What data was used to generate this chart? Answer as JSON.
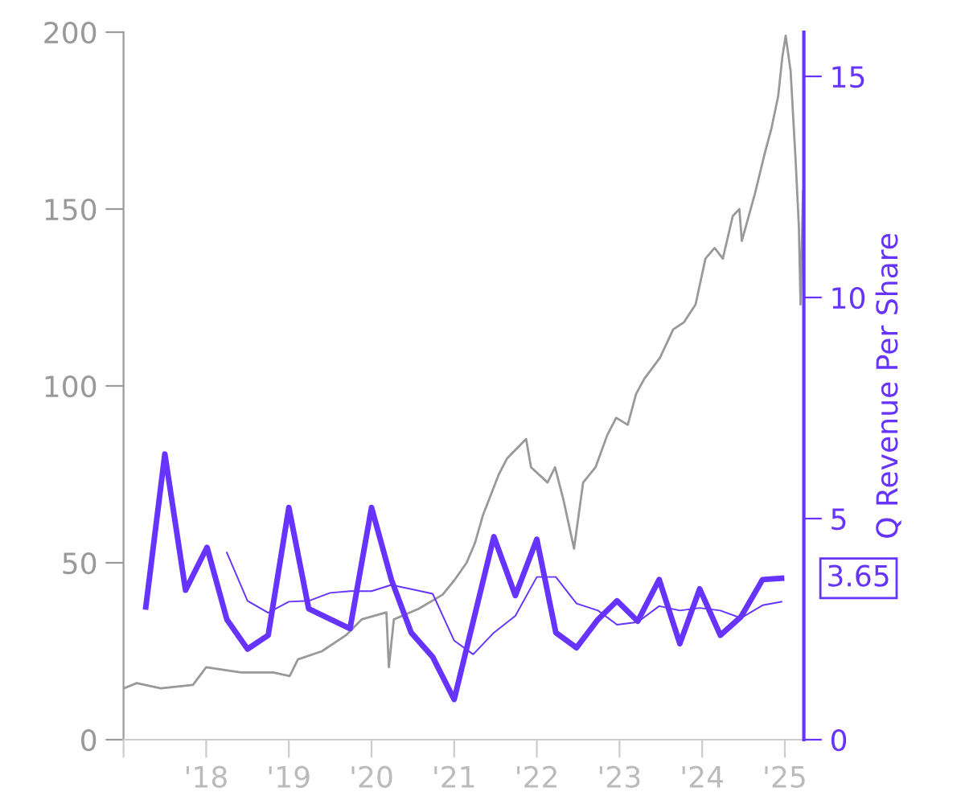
{
  "chart_data": {
    "type": "line",
    "y2label": "Q Revenue Per Share",
    "xlim": [
      2017.0,
      2025.23
    ],
    "xticks": [
      {
        "value": 2017,
        "label": null
      },
      {
        "value": 2018,
        "label": "'18"
      },
      {
        "value": 2019,
        "label": "'19"
      },
      {
        "value": 2020,
        "label": "'20"
      },
      {
        "value": 2021,
        "label": "'21"
      },
      {
        "value": 2022,
        "label": "'22"
      },
      {
        "value": 2023,
        "label": "'23"
      },
      {
        "value": 2024,
        "label": "'24"
      },
      {
        "value": 2025,
        "label": "'25"
      }
    ],
    "ylim": [
      0,
      200
    ],
    "yticks": [
      0,
      50,
      100,
      150,
      200
    ],
    "y2lim": [
      0,
      16
    ],
    "y2ticks": [
      0,
      5,
      10,
      15
    ],
    "grid": false,
    "legend": false,
    "marker": "none",
    "line_style": "solid",
    "series": [
      {
        "color": "#999999",
        "x": [
          2017.0,
          2017.16,
          2017.45,
          2017.84,
          2018.0,
          2018.42,
          2018.81,
          2019.01,
          2019.11,
          2019.4,
          2019.69,
          2019.88,
          2020.18,
          2020.21,
          2020.27,
          2020.57,
          2020.86,
          2021.0,
          2021.15,
          2021.25,
          2021.35,
          2021.54,
          2021.64,
          2021.87,
          2021.93,
          2022.13,
          2022.22,
          2022.32,
          2022.45,
          2022.56,
          2022.71,
          2022.85,
          2022.96,
          2023.1,
          2023.2,
          2023.3,
          2023.49,
          2023.65,
          2023.78,
          2023.92,
          2024.04,
          2024.15,
          2024.25,
          2024.37,
          2024.45,
          2024.48,
          2024.64,
          2024.76,
          2024.84,
          2024.92,
          2024.97,
          2025.01,
          2025.07,
          2025.13,
          2025.17,
          2025.19,
          2025.22
        ],
        "values": [
          14.5,
          16,
          14.5,
          15.5,
          20.5,
          19,
          19,
          18,
          22.7,
          25,
          29.5,
          34,
          36,
          20.5,
          34,
          37,
          41,
          45,
          50,
          55.5,
          63.6,
          75,
          79.5,
          85,
          77,
          72.7,
          77,
          68,
          54,
          72.7,
          77,
          86,
          91,
          89,
          97.7,
          102,
          108,
          116,
          118,
          123,
          136,
          139,
          136,
          148,
          150,
          141,
          154.5,
          166,
          173,
          182,
          193,
          199,
          189,
          164,
          145,
          123,
          155
        ]
      },
      {
        "color": "#6633ff",
        "axis": "y2",
        "x": [
          2017.27,
          2017.5,
          2017.75,
          2018.01,
          2018.25,
          2018.5,
          2018.75,
          2019.0,
          2019.24,
          2019.74,
          2020.0,
          2020.24,
          2020.48,
          2020.74,
          2021.0,
          2021.48,
          2021.74,
          2022.0,
          2022.23,
          2022.48,
          2022.74,
          2022.97,
          2023.22,
          2023.48,
          2023.73,
          2023.97,
          2024.22,
          2024.47,
          2024.73,
          2024.96
        ],
        "values": [
          3.0,
          6.46,
          3.38,
          4.35,
          2.72,
          2.05,
          2.36,
          5.25,
          2.96,
          2.51,
          5.25,
          3.62,
          2.42,
          1.87,
          0.91,
          4.59,
          3.26,
          4.53,
          2.42,
          2.08,
          2.72,
          3.14,
          2.68,
          3.62,
          2.17,
          3.41,
          2.36,
          2.78,
          3.62,
          3.65
        ]
      },
      {
        "color": "#6633ff",
        "axis": "y2",
        "x": [
          2018.25,
          2018.5,
          2018.75,
          2019.0,
          2019.24,
          2019.5,
          2019.74,
          2020.0,
          2020.24,
          2020.74,
          2021.0,
          2021.23,
          2021.48,
          2021.74,
          2022.0,
          2022.23,
          2022.48,
          2022.74,
          2022.97,
          2023.22,
          2023.48,
          2023.73,
          2023.97,
          2024.22,
          2024.47,
          2024.73,
          2024.96
        ],
        "values": [
          4.23,
          3.14,
          2.87,
          3.12,
          3.14,
          3.32,
          3.36,
          3.36,
          3.5,
          3.3,
          2.24,
          1.93,
          2.42,
          2.8,
          3.68,
          3.68,
          3.08,
          2.92,
          2.6,
          2.66,
          3.02,
          2.92,
          2.98,
          2.92,
          2.75,
          3.04,
          3.12
        ]
      }
    ],
    "annotations": [
      "3.65"
    ]
  }
}
